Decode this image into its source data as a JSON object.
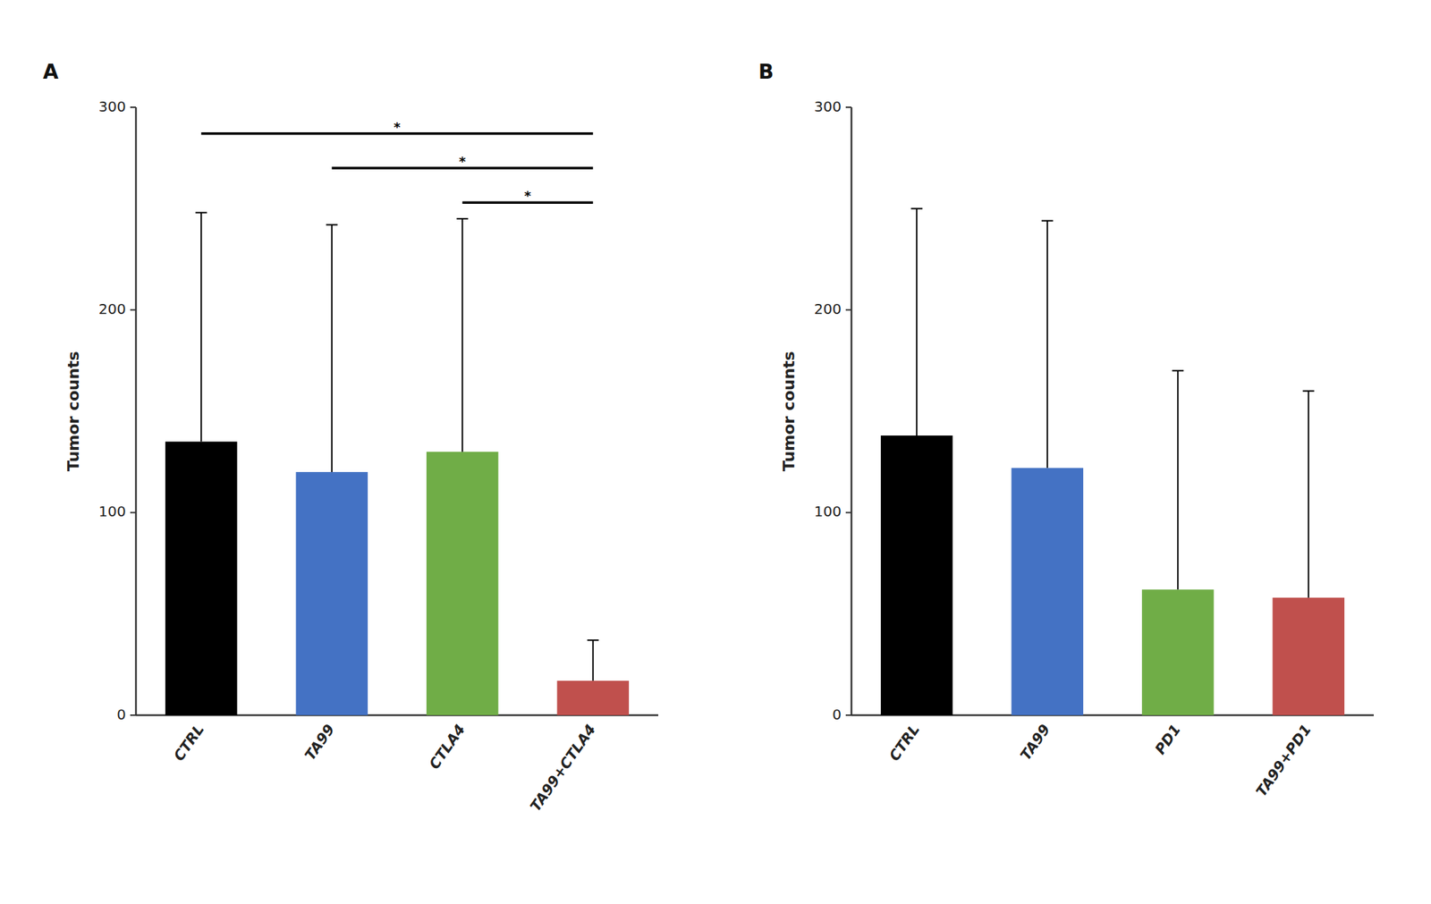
{
  "chart_data": [
    {
      "type": "bar",
      "title": "A",
      "categories": [
        "CTRL",
        "TA99",
        "CTLA4",
        "TA99+CTLA4"
      ],
      "values": [
        135,
        120,
        130,
        17
      ],
      "errors": [
        113,
        122,
        115,
        20
      ],
      "colors": [
        "#000000",
        "#4472C4",
        "#70AD47",
        "#C0504D"
      ],
      "ylabel": "Tumor counts",
      "ylim": [
        0,
        300
      ],
      "yticks": [
        0,
        100,
        200,
        300
      ],
      "annotations": [
        {
          "from": "CTRL",
          "to": "TA99+CTLA4",
          "y": 287,
          "text": "*"
        },
        {
          "from": "TA99",
          "to": "TA99+CTLA4",
          "y": 270,
          "text": "*"
        },
        {
          "from": "CTLA4",
          "to": "TA99+CTLA4",
          "y": 253,
          "text": "*"
        }
      ]
    },
    {
      "type": "bar",
      "title": "B",
      "categories": [
        "CTRL",
        "TA99",
        "PD1",
        "TA99+PD1"
      ],
      "values": [
        138,
        122,
        62,
        58
      ],
      "errors": [
        112,
        122,
        108,
        102
      ],
      "colors": [
        "#000000",
        "#4472C4",
        "#70AD47",
        "#C0504D"
      ],
      "ylabel": "Tumor counts",
      "ylim": [
        0,
        300
      ],
      "yticks": [
        0,
        100,
        200,
        300
      ]
    }
  ]
}
